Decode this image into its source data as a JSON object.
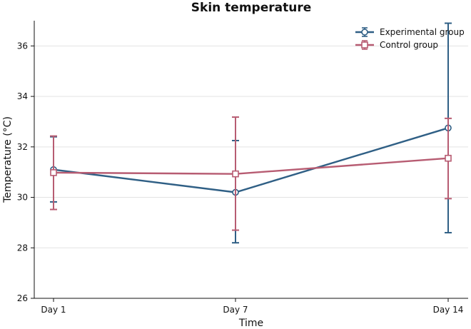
{
  "chart_data": {
    "type": "line",
    "title": "Skin temperature",
    "xlabel": "Time",
    "ylabel": "Temperature (°C)",
    "categories": [
      "Day 1",
      "Day 7",
      "Day 14"
    ],
    "ylim": [
      26,
      37
    ],
    "yticks": [
      26,
      28,
      30,
      32,
      34,
      36
    ],
    "grid": "horizontal",
    "legend_position": "top-right",
    "series": [
      {
        "name": "Experimental group",
        "color": "#2f5f85",
        "marker": "circle",
        "values": [
          31.1,
          30.2,
          32.75
        ],
        "error_low": [
          29.82,
          28.2,
          28.6
        ],
        "error_high": [
          32.4,
          32.25,
          36.9
        ]
      },
      {
        "name": "Control group",
        "color": "#b75c72",
        "marker": "square",
        "values": [
          30.98,
          30.93,
          31.55
        ],
        "error_low": [
          29.52,
          28.7,
          29.95
        ],
        "error_high": [
          32.43,
          33.18,
          33.13
        ]
      }
    ]
  }
}
